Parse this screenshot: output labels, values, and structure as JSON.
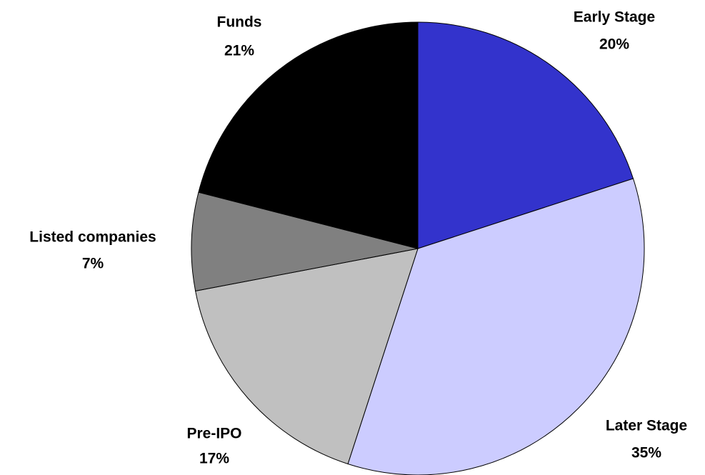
{
  "chart_data": {
    "type": "pie",
    "categories": [
      "Early Stage",
      "Later Stage",
      "Pre-IPO",
      "Listed companies",
      "Funds"
    ],
    "values": [
      20,
      35,
      17,
      7,
      21
    ],
    "value_labels": [
      "20%",
      "35%",
      "17%",
      "7%",
      "21%"
    ],
    "colors": [
      "#3333cc",
      "#ccccff",
      "#c0c0c0",
      "#808080",
      "#000000"
    ]
  }
}
